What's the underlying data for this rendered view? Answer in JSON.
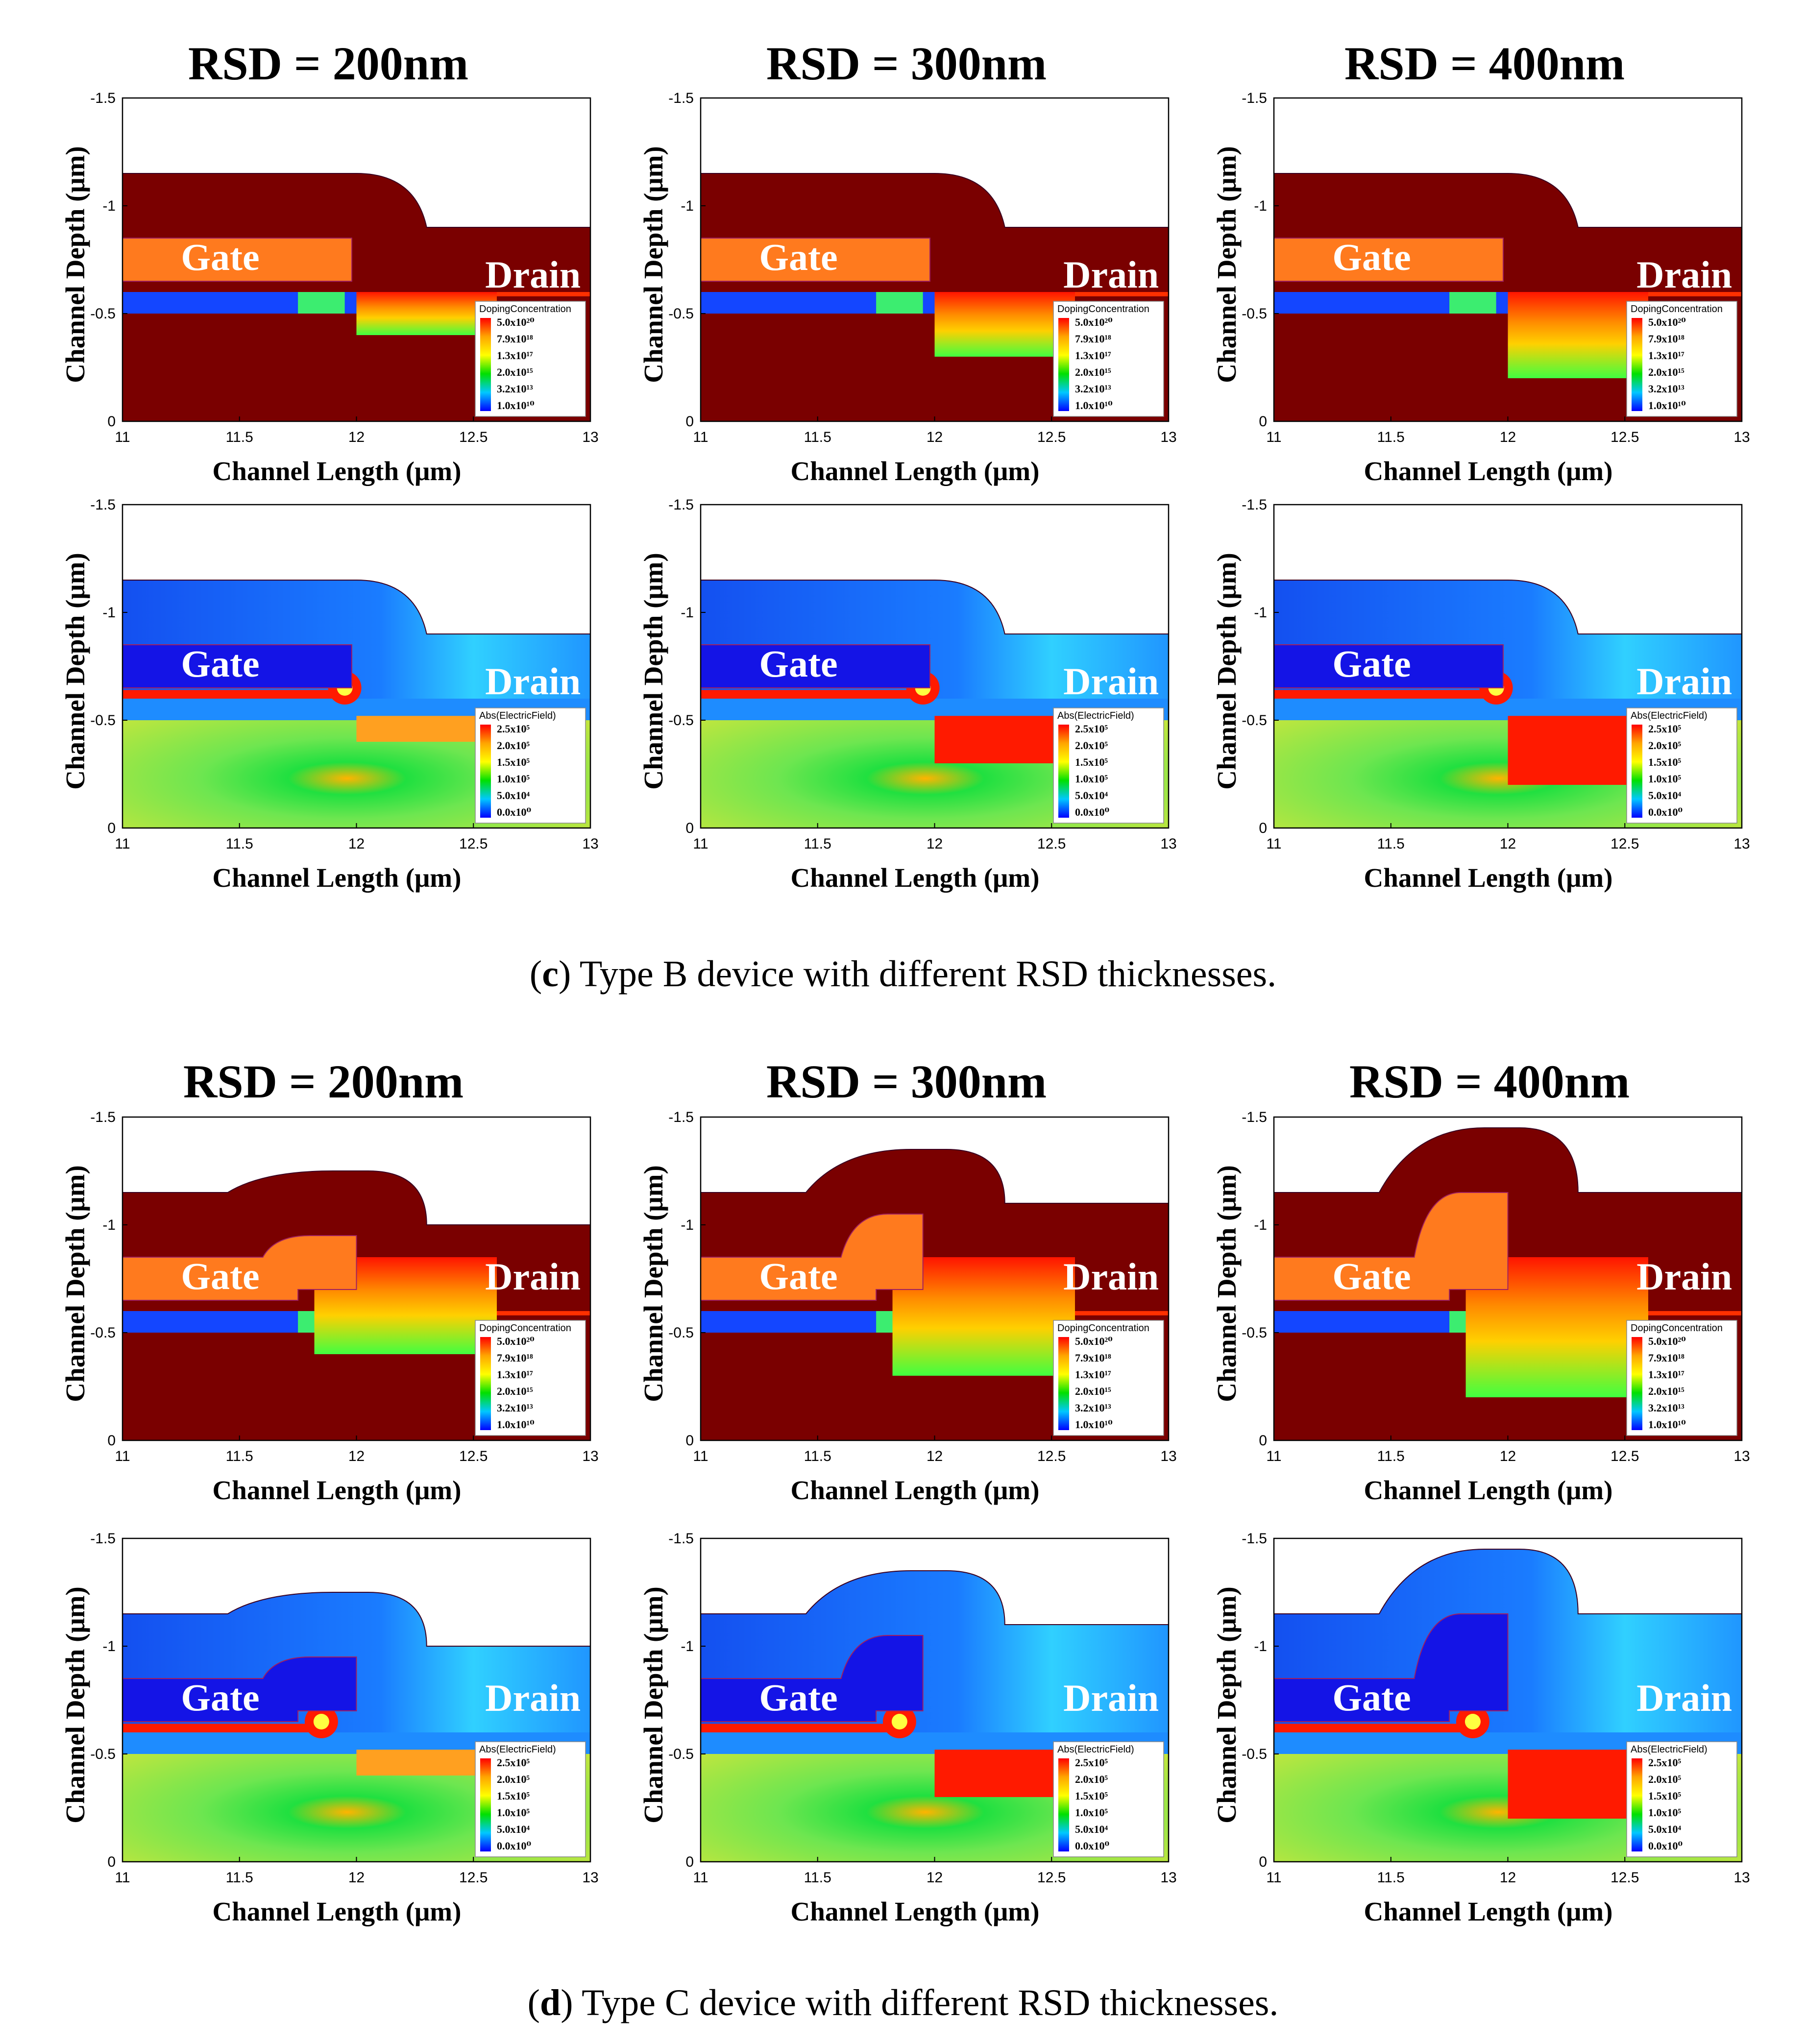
{
  "column_titles": [
    "RSD = 200nm",
    "RSD = 300nm",
    "RSD = 400nm"
  ],
  "captions": {
    "c": {
      "letter": "c",
      "text": ") Type B device with different RSD thicknesses."
    },
    "d": {
      "letter": "d",
      "text": ") Type C device with different RSD thicknesses."
    }
  },
  "axes": {
    "x_label": "Channel Length (μm)",
    "y_label": "Channel Depth (μm)",
    "x_ticks": [
      "11",
      "11.5",
      "12",
      "12.5",
      "13"
    ],
    "y_ticks": [
      "-1.5",
      "-1",
      "-0.5",
      "0"
    ]
  },
  "region_labels": {
    "gate": "Gate",
    "drain": "Drain"
  },
  "legends": {
    "doping": {
      "title": "DopingConcentration",
      "entries": [
        "5.0x10²⁰",
        "7.9x10¹⁸",
        "1.3x10¹⁷",
        "2.0x10¹⁵",
        "3.2x10¹³",
        "1.0x10¹⁰"
      ]
    },
    "efield": {
      "title": "Abs(ElectricField)",
      "entries": [
        "2.5x10⁵",
        "2.0x10⁵",
        "1.5x10⁵",
        "1.0x10⁵",
        "5.0x10⁴",
        "0.0x10⁰"
      ]
    }
  },
  "colors": {
    "doping_bg": "#7a0000",
    "gate_doping": "#ff7a1e",
    "efield_gate": "#1414e6",
    "efield_sub": "#a8e63c",
    "hotspot": "#ff1a00",
    "channel_blue": "#1446ff"
  }
}
